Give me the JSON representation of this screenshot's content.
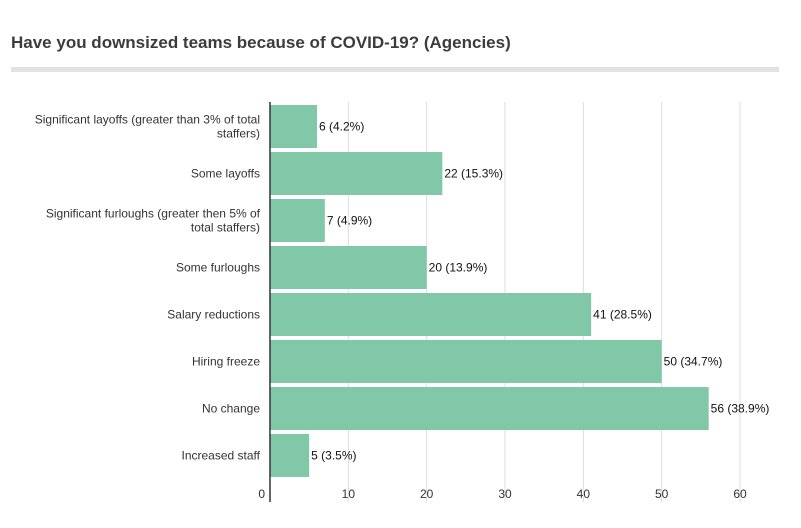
{
  "chart_data": {
    "type": "bar",
    "orientation": "horizontal",
    "title": "Have you downsized teams because of COVID-19? (Agencies)",
    "categories": [
      [
        "Significant layoffs (greater than 3% of total",
        "staffers)"
      ],
      [
        "Some layoffs"
      ],
      [
        "Significant furloughs (greater then 5% of",
        "total staffers)"
      ],
      [
        "Some furloughs"
      ],
      [
        "Salary reductions"
      ],
      [
        "Hiring freeze"
      ],
      [
        "No change"
      ],
      [
        "Increased staff"
      ]
    ],
    "values": [
      6,
      22,
      7,
      20,
      41,
      50,
      56,
      5
    ],
    "data_labels": [
      "6 (4.2%)",
      "22 (15.3%)",
      "7 (4.9%)",
      "20 (13.9%)",
      "41 (28.5%)",
      "50 (34.7%)",
      "56 (38.9%)",
      "5 (3.5%)"
    ],
    "xticks": [
      "0",
      "10",
      "20",
      "30",
      "40",
      "50",
      "60"
    ],
    "xlim": [
      0,
      60
    ],
    "grid": true,
    "bar_color": "#80c8a8",
    "grid_color": "#dddddd",
    "axis_color": "#333333"
  }
}
